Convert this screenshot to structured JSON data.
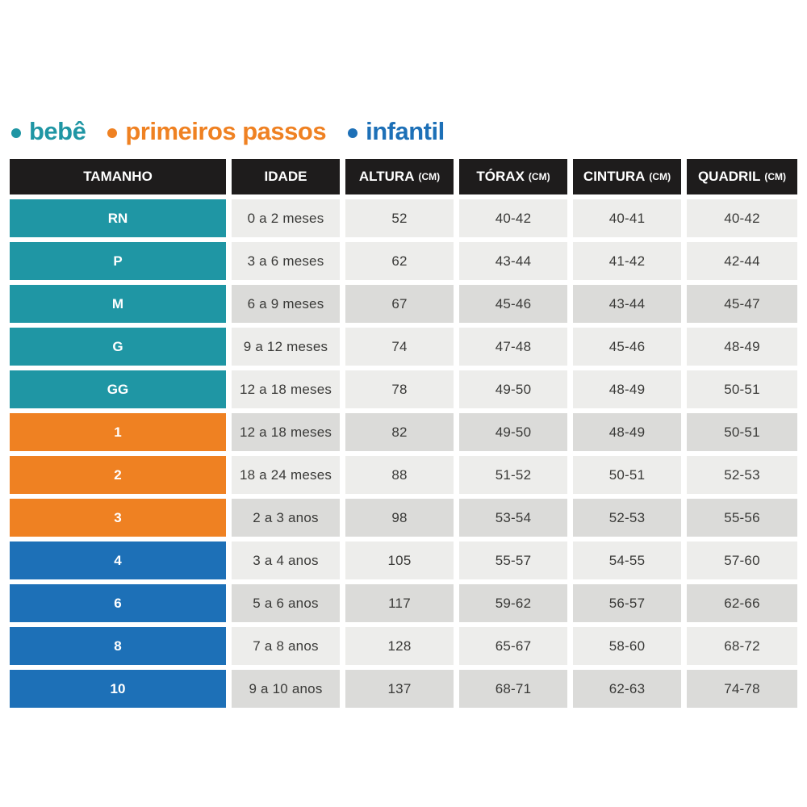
{
  "legend": {
    "items": [
      {
        "label": "bebê",
        "color": "#1F96A4",
        "bullet": "•"
      },
      {
        "label": "primeiros passos",
        "color": "#EF8122",
        "bullet": "•"
      },
      {
        "label": "infantil",
        "color": "#1D70B7",
        "bullet": "•"
      }
    ]
  },
  "colors": {
    "bebe": "#1F96A4",
    "primeiros_passos": "#EF8122",
    "infantil": "#1D70B7",
    "header_bg": "#1E1C1C",
    "row_light": "#EDEDEB",
    "row_dark": "#DBDBD9",
    "data_text": "#3A3A38",
    "page_bg": "#FFFFFF"
  },
  "table": {
    "headers": [
      {
        "label": "TAMANHO",
        "unit": ""
      },
      {
        "label": "IDADE",
        "unit": ""
      },
      {
        "label": "ALTURA",
        "unit": "(CM)"
      },
      {
        "label": "TÓRAX",
        "unit": "(CM)"
      },
      {
        "label": "CINTURA",
        "unit": "(CM)"
      },
      {
        "label": "QUADRIL",
        "unit": "(CM)"
      }
    ],
    "rows": [
      {
        "size": "RN",
        "group": "bebe",
        "shade": "light",
        "idade": "0 a 2 meses",
        "altura": "52",
        "torax": "40-42",
        "cintura": "40-41",
        "quadril": "40-42"
      },
      {
        "size": "P",
        "group": "bebe",
        "shade": "light",
        "idade": "3 a 6 meses",
        "altura": "62",
        "torax": "43-44",
        "cintura": "41-42",
        "quadril": "42-44"
      },
      {
        "size": "M",
        "group": "bebe",
        "shade": "dark",
        "idade": "6 a 9 meses",
        "altura": "67",
        "torax": "45-46",
        "cintura": "43-44",
        "quadril": "45-47"
      },
      {
        "size": "G",
        "group": "bebe",
        "shade": "light",
        "idade": "9 a 12 meses",
        "altura": "74",
        "torax": "47-48",
        "cintura": "45-46",
        "quadril": "48-49"
      },
      {
        "size": "GG",
        "group": "bebe",
        "shade": "light",
        "idade": "12 a 18 meses",
        "altura": "78",
        "torax": "49-50",
        "cintura": "48-49",
        "quadril": "50-51"
      },
      {
        "size": "1",
        "group": "primeiros_passos",
        "shade": "dark",
        "idade": "12 a 18 meses",
        "altura": "82",
        "torax": "49-50",
        "cintura": "48-49",
        "quadril": "50-51"
      },
      {
        "size": "2",
        "group": "primeiros_passos",
        "shade": "light",
        "idade": "18 a 24 meses",
        "altura": "88",
        "torax": "51-52",
        "cintura": "50-51",
        "quadril": "52-53"
      },
      {
        "size": "3",
        "group": "primeiros_passos",
        "shade": "dark",
        "idade": "2 a 3 anos",
        "altura": "98",
        "torax": "53-54",
        "cintura": "52-53",
        "quadril": "55-56"
      },
      {
        "size": "4",
        "group": "infantil",
        "shade": "light",
        "idade": "3 a 4 anos",
        "altura": "105",
        "torax": "55-57",
        "cintura": "54-55",
        "quadril": "57-60"
      },
      {
        "size": "6",
        "group": "infantil",
        "shade": "dark",
        "idade": "5 a 6 anos",
        "altura": "117",
        "torax": "59-62",
        "cintura": "56-57",
        "quadril": "62-66"
      },
      {
        "size": "8",
        "group": "infantil",
        "shade": "light",
        "idade": "7 a 8 anos",
        "altura": "128",
        "torax": "65-67",
        "cintura": "58-60",
        "quadril": "68-72"
      },
      {
        "size": "10",
        "group": "infantil",
        "shade": "dark",
        "idade": "9 a 10 anos",
        "altura": "137",
        "torax": "68-71",
        "cintura": "62-63",
        "quadril": "74-78"
      }
    ]
  },
  "chart_data": {
    "type": "table",
    "legend_entries": [
      "bebê",
      "primeiros passos",
      "infantil"
    ],
    "columns": [
      "TAMANHO",
      "IDADE",
      "ALTURA (CM)",
      "TÓRAX (CM)",
      "CINTURA (CM)",
      "QUADRIL (CM)"
    ],
    "rows": [
      [
        "RN",
        "0 a 2 meses",
        "52",
        "40-42",
        "40-41",
        "40-42"
      ],
      [
        "P",
        "3 a 6 meses",
        "62",
        "43-44",
        "41-42",
        "42-44"
      ],
      [
        "M",
        "6 a 9 meses",
        "67",
        "45-46",
        "43-44",
        "45-47"
      ],
      [
        "G",
        "9 a 12 meses",
        "74",
        "47-48",
        "45-46",
        "48-49"
      ],
      [
        "GG",
        "12 a 18 meses",
        "78",
        "49-50",
        "48-49",
        "50-51"
      ],
      [
        "1",
        "12 a 18 meses",
        "82",
        "49-50",
        "48-49",
        "50-51"
      ],
      [
        "2",
        "18 a 24 meses",
        "88",
        "51-52",
        "50-51",
        "52-53"
      ],
      [
        "3",
        "2 a 3 anos",
        "98",
        "53-54",
        "52-53",
        "55-56"
      ],
      [
        "4",
        "3 a 4 anos",
        "105",
        "55-57",
        "54-55",
        "57-60"
      ],
      [
        "6",
        "5 a 6 anos",
        "117",
        "59-62",
        "56-57",
        "62-66"
      ],
      [
        "8",
        "7 a 8 anos",
        "128",
        "65-67",
        "58-60",
        "68-72"
      ],
      [
        "10",
        "9 a 10 anos",
        "137",
        "68-71",
        "62-63",
        "74-78"
      ]
    ],
    "row_groups": {
      "bebê": [
        "RN",
        "P",
        "M",
        "G",
        "GG"
      ],
      "primeiros passos": [
        "1",
        "2",
        "3"
      ],
      "infantil": [
        "4",
        "6",
        "8",
        "10"
      ]
    }
  }
}
